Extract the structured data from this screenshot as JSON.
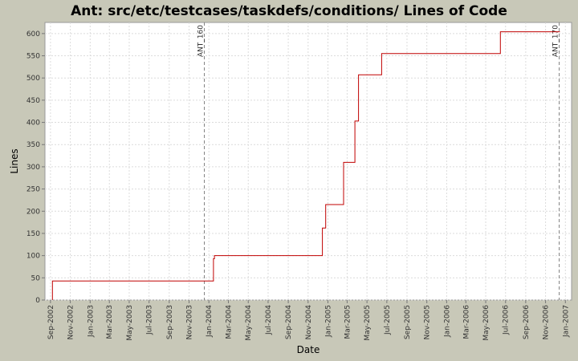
{
  "chart_data": {
    "type": "line",
    "step": true,
    "title": "Ant: src/etc/testcases/taskdefs/conditions/ Lines of Code",
    "xlabel": "Date",
    "ylabel": "Lines",
    "xlim": [
      "2002-08-15",
      "2007-01-20"
    ],
    "ylim": [
      0,
      625
    ],
    "grid": true,
    "yticks": [
      0,
      50,
      100,
      150,
      200,
      250,
      300,
      350,
      400,
      450,
      500,
      550,
      600
    ],
    "xticks": [
      {
        "date": "2002-09-01",
        "label": "Sep-2002"
      },
      {
        "date": "2002-11-01",
        "label": "Nov-2002"
      },
      {
        "date": "2003-01-01",
        "label": "Jan-2003"
      },
      {
        "date": "2003-03-01",
        "label": "Mar-2003"
      },
      {
        "date": "2003-05-01",
        "label": "May-2003"
      },
      {
        "date": "2003-07-01",
        "label": "Jul-2003"
      },
      {
        "date": "2003-09-01",
        "label": "Sep-2003"
      },
      {
        "date": "2003-11-01",
        "label": "Nov-2003"
      },
      {
        "date": "2004-01-01",
        "label": "Jan-2004"
      },
      {
        "date": "2004-03-01",
        "label": "Mar-2004"
      },
      {
        "date": "2004-05-01",
        "label": "May-2004"
      },
      {
        "date": "2004-07-01",
        "label": "Jul-2004"
      },
      {
        "date": "2004-09-01",
        "label": "Sep-2004"
      },
      {
        "date": "2004-11-01",
        "label": "Nov-2004"
      },
      {
        "date": "2005-01-01",
        "label": "Jan-2005"
      },
      {
        "date": "2005-03-01",
        "label": "Mar-2005"
      },
      {
        "date": "2005-05-01",
        "label": "May-2005"
      },
      {
        "date": "2005-07-01",
        "label": "Jul-2005"
      },
      {
        "date": "2005-09-01",
        "label": "Sep-2005"
      },
      {
        "date": "2005-11-01",
        "label": "Nov-2005"
      },
      {
        "date": "2006-01-01",
        "label": "Jan-2006"
      },
      {
        "date": "2006-03-01",
        "label": "Mar-2006"
      },
      {
        "date": "2006-05-01",
        "label": "May-2006"
      },
      {
        "date": "2006-07-01",
        "label": "Jul-2006"
      },
      {
        "date": "2006-09-01",
        "label": "Sep-2006"
      },
      {
        "date": "2006-11-01",
        "label": "Nov-2006"
      },
      {
        "date": "2007-01-01",
        "label": "Jan-2007"
      }
    ],
    "markers": [
      {
        "date": "2003-12-18",
        "label": "ANT_160"
      },
      {
        "date": "2006-12-13",
        "label": "ANT_170"
      }
    ],
    "series": [
      {
        "color": "#c00000",
        "points": [
          {
            "x": "2002-09-07",
            "y": 0
          },
          {
            "x": "2002-09-07",
            "y": 43
          },
          {
            "x": "2004-01-15",
            "y": 43
          },
          {
            "x": "2004-01-15",
            "y": 93
          },
          {
            "x": "2004-01-18",
            "y": 93
          },
          {
            "x": "2004-01-18",
            "y": 100
          },
          {
            "x": "2004-12-15",
            "y": 100
          },
          {
            "x": "2004-12-15",
            "y": 162
          },
          {
            "x": "2004-12-25",
            "y": 162
          },
          {
            "x": "2004-12-25",
            "y": 215
          },
          {
            "x": "2005-02-18",
            "y": 215
          },
          {
            "x": "2005-02-18",
            "y": 310
          },
          {
            "x": "2005-03-25",
            "y": 310
          },
          {
            "x": "2005-03-25",
            "y": 403
          },
          {
            "x": "2005-04-05",
            "y": 403
          },
          {
            "x": "2005-04-05",
            "y": 507
          },
          {
            "x": "2005-06-15",
            "y": 507
          },
          {
            "x": "2005-06-15",
            "y": 555
          },
          {
            "x": "2006-06-15",
            "y": 555
          },
          {
            "x": "2006-06-15",
            "y": 604
          },
          {
            "x": "2006-12-15",
            "y": 604
          }
        ]
      }
    ]
  },
  "colors": {
    "background": "#c8c8b8",
    "plot_background": "#ffffff",
    "grid": "#dcdcdc",
    "marker_line": "#808080",
    "series": "#c00000"
  }
}
